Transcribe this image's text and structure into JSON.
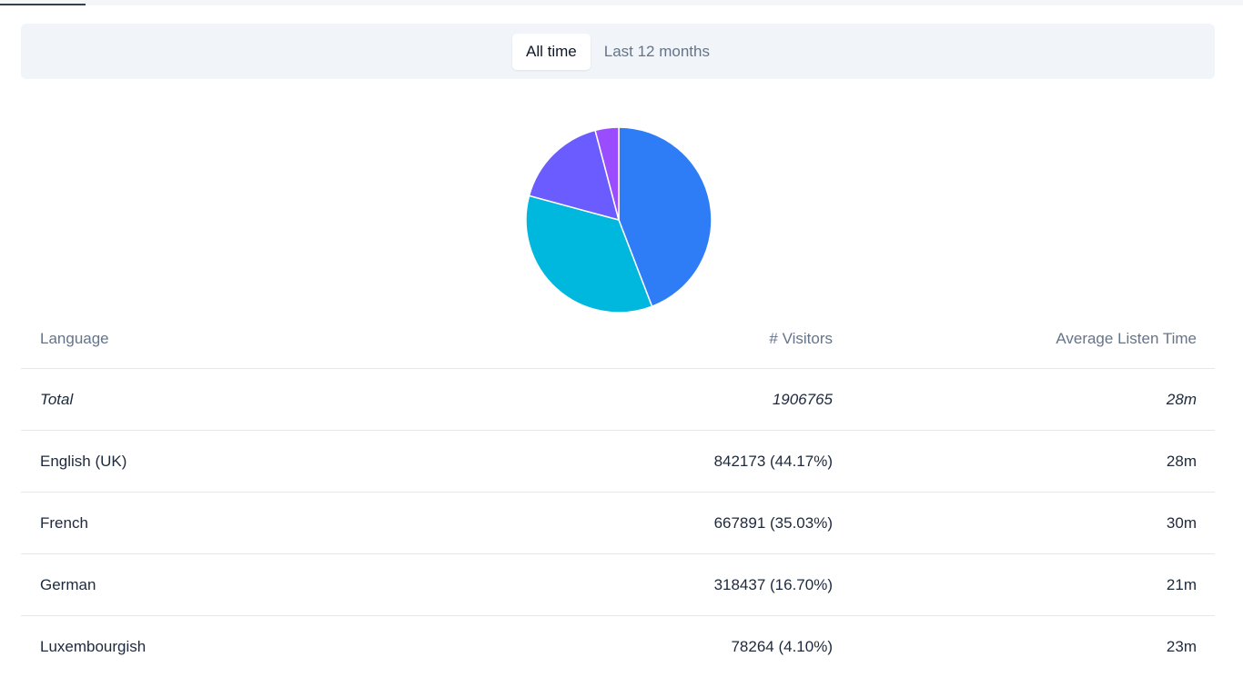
{
  "filter": {
    "options": [
      {
        "label": "All time",
        "active": true
      },
      {
        "label": "Last 12 months",
        "active": false
      }
    ]
  },
  "chart_data": {
    "type": "pie",
    "categories": [
      "English (UK)",
      "French",
      "German",
      "Luxembourgish"
    ],
    "values": [
      44.17,
      35.03,
      16.7,
      4.1
    ],
    "colors": [
      "#2f7df6",
      "#00b7de",
      "#6a5cff",
      "#9a4dff"
    ],
    "title": ""
  },
  "table": {
    "headers": {
      "language": "Language",
      "visitors": "# Visitors",
      "avg_time": "Average Listen Time"
    },
    "total": {
      "language": "Total",
      "visitors": "1906765",
      "avg_time": "28m"
    },
    "rows": [
      {
        "language": "English (UK)",
        "visitors": "842173 (44.17%)",
        "avg_time": "28m"
      },
      {
        "language": "French",
        "visitors": "667891 (35.03%)",
        "avg_time": "30m"
      },
      {
        "language": "German",
        "visitors": "318437 (16.70%)",
        "avg_time": "21m"
      },
      {
        "language": "Luxembourgish",
        "visitors": "78264 (4.10%)",
        "avg_time": "23m"
      }
    ]
  }
}
